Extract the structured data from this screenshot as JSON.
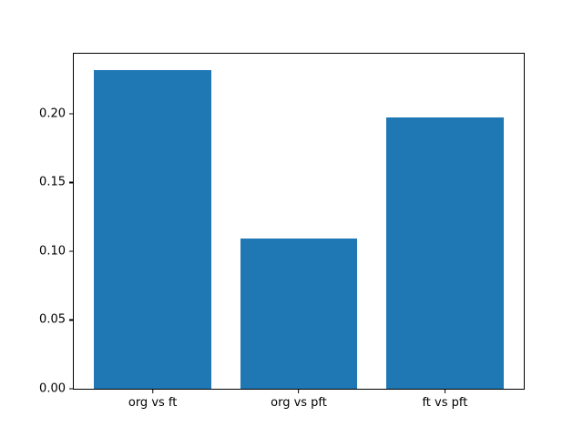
{
  "chart_data": {
    "type": "bar",
    "categories": [
      "org vs ft",
      "org vs pft",
      "ft vs pft"
    ],
    "values": [
      0.232,
      0.109,
      0.197
    ],
    "title": "",
    "xlabel": "",
    "ylabel": "",
    "ylim": [
      0,
      0.2436
    ],
    "xlim": [
      -0.54,
      2.54
    ],
    "yticks": [
      0.0,
      0.05,
      0.1,
      0.15,
      0.2
    ],
    "ytick_labels": [
      "0.00",
      "0.05",
      "0.10",
      "0.15",
      "0.20"
    ],
    "bar_width_fraction": 0.8,
    "bar_color": "#1f77b4",
    "grid": false,
    "legend": null
  },
  "colors": {
    "background": "#ffffff",
    "axis": "#000000",
    "bar": "#1f77b4"
  }
}
